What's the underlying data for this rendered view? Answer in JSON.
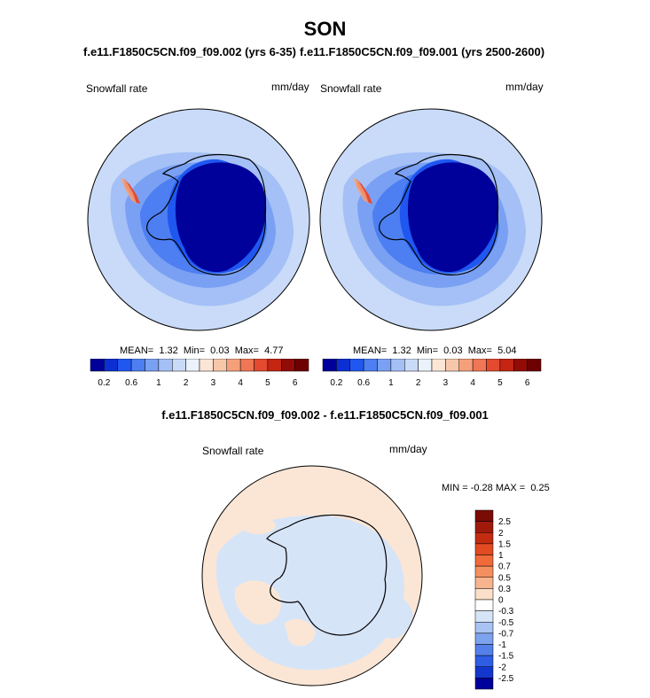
{
  "figure": {
    "season": "SON",
    "left_case": "f.e11.F1850C5CN.f09_f09.002 (yrs 6-35)",
    "right_case": "f.e11.F1850C5CN.f09_f09.001 (yrs 2500-2600)",
    "diff_title": "f.e11.F1850C5CN.f09_f09.002 - f.e11.F1850C5CN.f09_f09.001"
  },
  "chart_data": [
    {
      "type": "heatmap",
      "projection": "south-polar-stereographic",
      "variable": "Snowfall rate",
      "units": "mm/day",
      "stats": {
        "mean_label": "MEAN=",
        "mean": "1.32",
        "min_label": "Min=",
        "min": "0.03",
        "max_label": "Max=",
        "max": "4.77"
      },
      "colorbar": {
        "levels": [
          0.2,
          0.4,
          0.6,
          0.8,
          1,
          1.5,
          2,
          2.5,
          3,
          3.5,
          4,
          4.5,
          5,
          5.5,
          6
        ],
        "tick_labels": [
          "0.2",
          "0.6",
          "1",
          "2",
          "3",
          "4",
          "5",
          "6"
        ],
        "colors": [
          "#00009a",
          "#0c2fd3",
          "#1f57f0",
          "#4d7ff2",
          "#7aa0f3",
          "#a4c0f6",
          "#c9dbf8",
          "#ecf2fb",
          "#fbe6d6",
          "#f8c7aa",
          "#f5a07b",
          "#f07655",
          "#e34a30",
          "#c42412",
          "#930b06",
          "#6d0000"
        ]
      }
    },
    {
      "type": "heatmap",
      "projection": "south-polar-stereographic",
      "variable": "Snowfall rate",
      "units": "mm/day",
      "stats": {
        "mean_label": "MEAN=",
        "mean": "1.32",
        "min_label": "Min=",
        "min": "0.03",
        "max_label": "Max=",
        "max": "5.04"
      },
      "colorbar": {
        "levels": [
          0.2,
          0.4,
          0.6,
          0.8,
          1,
          1.5,
          2,
          2.5,
          3,
          3.5,
          4,
          4.5,
          5,
          5.5,
          6
        ],
        "tick_labels": [
          "0.2",
          "0.6",
          "1",
          "2",
          "3",
          "4",
          "5",
          "6"
        ],
        "colors": [
          "#00009a",
          "#0c2fd3",
          "#1f57f0",
          "#4d7ff2",
          "#7aa0f3",
          "#a4c0f6",
          "#c9dbf8",
          "#ecf2fb",
          "#fbe6d6",
          "#f8c7aa",
          "#f5a07b",
          "#f07655",
          "#e34a30",
          "#c42412",
          "#930b06",
          "#6d0000"
        ]
      }
    },
    {
      "type": "heatmap",
      "projection": "south-polar-stereographic",
      "variable": "Snowfall rate",
      "units": "mm/day",
      "stats": {
        "min_label": "MIN =",
        "min": "-0.28",
        "max_label": "MAX =",
        "max": "0.25"
      },
      "colorbar": {
        "tick_labels": [
          "2.5",
          "2",
          "1.5",
          "1",
          "0.7",
          "0.5",
          "0.3",
          "0",
          "-0.3",
          "-0.5",
          "-0.7",
          "-1",
          "-1.5",
          "-2",
          "-2.5"
        ],
        "colors": [
          "#7a0b05",
          "#a01a0b",
          "#c42c12",
          "#e24a22",
          "#f06a3a",
          "#f4905f",
          "#f7b48f",
          "#fbdfc8",
          "#ffffff",
          "#d6e4f8",
          "#a9c4f3",
          "#7ea3ee",
          "#5580ea",
          "#2f5de5",
          "#1337cd",
          "#00009a"
        ]
      }
    }
  ]
}
